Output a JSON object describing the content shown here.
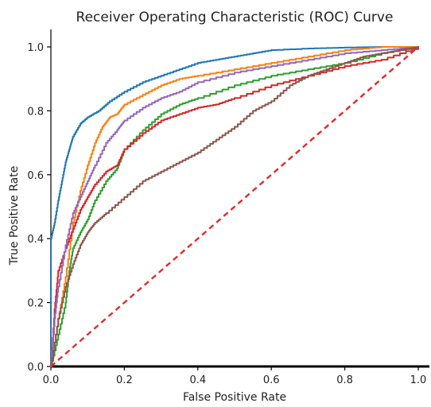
{
  "chart_data": {
    "type": "line",
    "title": "Receiver Operating Characteristic (ROC) Curve",
    "xlabel": "False Positive Rate",
    "ylabel": "True Positive Rate",
    "xlim": [
      0.0,
      1.0
    ],
    "ylim": [
      0.0,
      1.0
    ],
    "xticks": [
      "0.0",
      "0.2",
      "0.4",
      "0.6",
      "0.8",
      "1.0"
    ],
    "yticks": [
      "0.0",
      "0.2",
      "0.4",
      "0.6",
      "0.8",
      "1.0"
    ],
    "grid": false,
    "legend": "none",
    "series": [
      {
        "color": "#1f77b4",
        "x": [
          0.0,
          0.0,
          0.01,
          0.02,
          0.03,
          0.04,
          0.05,
          0.06,
          0.08,
          0.1,
          0.13,
          0.16,
          0.2,
          0.25,
          0.3,
          0.35,
          0.4,
          0.45,
          0.5,
          0.55,
          0.6,
          0.7,
          0.8,
          0.9,
          1.0
        ],
        "y": [
          0.0,
          0.4,
          0.45,
          0.52,
          0.58,
          0.64,
          0.68,
          0.72,
          0.76,
          0.78,
          0.8,
          0.83,
          0.86,
          0.89,
          0.91,
          0.93,
          0.95,
          0.96,
          0.97,
          0.98,
          0.99,
          0.995,
          0.998,
          1.0,
          1.0
        ]
      },
      {
        "color": "#ff7f0e",
        "x": [
          0.0,
          0.02,
          0.04,
          0.06,
          0.08,
          0.1,
          0.12,
          0.14,
          0.16,
          0.18,
          0.2,
          0.25,
          0.3,
          0.35,
          0.4,
          0.5,
          0.6,
          0.7,
          0.8,
          0.9,
          1.0
        ],
        "y": [
          0.0,
          0.15,
          0.28,
          0.45,
          0.55,
          0.63,
          0.7,
          0.75,
          0.78,
          0.79,
          0.82,
          0.85,
          0.88,
          0.9,
          0.91,
          0.93,
          0.95,
          0.97,
          0.99,
          1.0,
          1.0
        ]
      },
      {
        "color": "#2ca02c",
        "x": [
          0.0,
          0.02,
          0.04,
          0.05,
          0.06,
          0.08,
          0.1,
          0.12,
          0.15,
          0.18,
          0.2,
          0.25,
          0.3,
          0.35,
          0.4,
          0.5,
          0.6,
          0.7,
          0.8,
          0.9,
          1.0
        ],
        "y": [
          0.0,
          0.1,
          0.2,
          0.3,
          0.37,
          0.42,
          0.46,
          0.52,
          0.58,
          0.62,
          0.68,
          0.74,
          0.79,
          0.82,
          0.84,
          0.88,
          0.91,
          0.93,
          0.95,
          0.98,
          1.0
        ]
      },
      {
        "color": "#d62728",
        "x": [
          0.0,
          0.01,
          0.02,
          0.04,
          0.06,
          0.08,
          0.1,
          0.12,
          0.15,
          0.18,
          0.2,
          0.25,
          0.3,
          0.35,
          0.4,
          0.45,
          0.5,
          0.6,
          0.7,
          0.8,
          0.9,
          1.0
        ],
        "y": [
          0.0,
          0.18,
          0.3,
          0.37,
          0.43,
          0.49,
          0.53,
          0.57,
          0.61,
          0.63,
          0.68,
          0.73,
          0.77,
          0.79,
          0.81,
          0.82,
          0.84,
          0.88,
          0.91,
          0.94,
          0.96,
          1.0
        ]
      },
      {
        "color": "#9467bd",
        "x": [
          0.0,
          0.01,
          0.02,
          0.04,
          0.06,
          0.08,
          0.1,
          0.12,
          0.15,
          0.18,
          0.2,
          0.25,
          0.3,
          0.35,
          0.4,
          0.5,
          0.6,
          0.7,
          0.8,
          0.9,
          1.0
        ],
        "y": [
          0.0,
          0.15,
          0.25,
          0.38,
          0.48,
          0.53,
          0.58,
          0.63,
          0.7,
          0.74,
          0.77,
          0.81,
          0.84,
          0.86,
          0.89,
          0.92,
          0.94,
          0.96,
          0.98,
          0.99,
          1.0
        ]
      },
      {
        "color": "#8c564b",
        "x": [
          0.0,
          0.02,
          0.04,
          0.06,
          0.08,
          0.1,
          0.12,
          0.15,
          0.2,
          0.25,
          0.3,
          0.35,
          0.4,
          0.45,
          0.5,
          0.55,
          0.6,
          0.65,
          0.7,
          0.75,
          0.8,
          0.85,
          0.9,
          0.95,
          1.0
        ],
        "y": [
          0.0,
          0.15,
          0.25,
          0.32,
          0.38,
          0.42,
          0.45,
          0.48,
          0.53,
          0.58,
          0.61,
          0.64,
          0.67,
          0.71,
          0.75,
          0.8,
          0.83,
          0.88,
          0.91,
          0.93,
          0.95,
          0.97,
          0.98,
          0.99,
          1.0
        ]
      },
      {
        "color": "#e22b2b",
        "style": "dashed",
        "x": [
          0.0,
          1.0
        ],
        "y": [
          0.0,
          1.0
        ]
      }
    ]
  }
}
